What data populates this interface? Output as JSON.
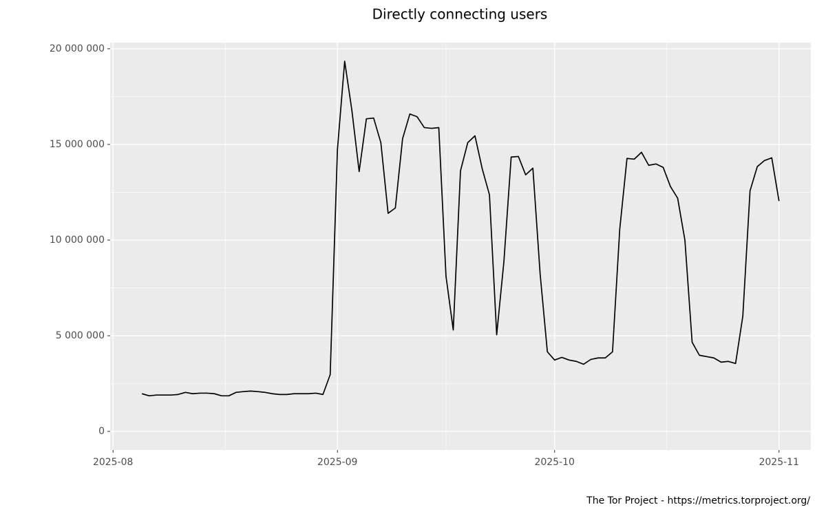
{
  "chart_data": {
    "type": "line",
    "title": "Directly connecting users",
    "caption": "The Tor Project - https://metrics.torproject.org/",
    "series": [
      {
        "color": "#000000",
        "values": [
          1970000,
          1860000,
          1900000,
          1900000,
          1900000,
          1930000,
          2040000,
          1970000,
          2000000,
          2000000,
          1970000,
          1860000,
          1860000,
          2040000,
          2080000,
          2110000,
          2080000,
          2040000,
          1970000,
          1930000,
          1930000,
          1970000,
          1970000,
          1970000,
          2000000,
          1930000,
          2970000,
          14730000,
          19350000,
          16770000,
          13580000,
          16340000,
          16380000,
          15090000,
          11400000,
          11680000,
          15300000,
          16590000,
          16450000,
          15880000,
          15840000,
          15880000,
          8100000,
          5300000,
          13620000,
          15090000,
          15450000,
          13730000,
          12370000,
          5050000,
          8890000,
          14340000,
          14370000,
          13410000,
          13760000,
          8240000,
          4160000,
          3730000,
          3870000,
          3730000,
          3660000,
          3510000,
          3760000,
          3840000,
          3840000,
          4160000,
          10570000,
          14270000,
          14230000,
          14590000,
          13910000,
          13980000,
          13800000,
          12800000,
          12190000,
          10000000,
          4660000,
          3980000,
          3910000,
          3840000,
          3620000,
          3660000,
          3550000,
          6020000,
          12580000,
          13840000,
          14160000,
          14300000,
          12040000
        ]
      }
    ],
    "xlim": [
      -4.4,
      92.4
    ],
    "xticks": [
      {
        "value": -4,
        "label": "2025-08"
      },
      {
        "value": 27,
        "label": "2025-09"
      },
      {
        "value": 57,
        "label": "2025-10"
      },
      {
        "value": 88,
        "label": "2025-11"
      }
    ],
    "ylim": [
      -970000,
      20320000
    ],
    "yticks": [
      0,
      {
        "value": 5000000,
        "label": "5 000 000"
      },
      {
        "value": 10000000,
        "label": "10 000 000"
      },
      {
        "value": 15000000,
        "label": "15 000 000"
      },
      {
        "value": 20000000,
        "label": "20 000 000"
      }
    ],
    "grid": true
  }
}
